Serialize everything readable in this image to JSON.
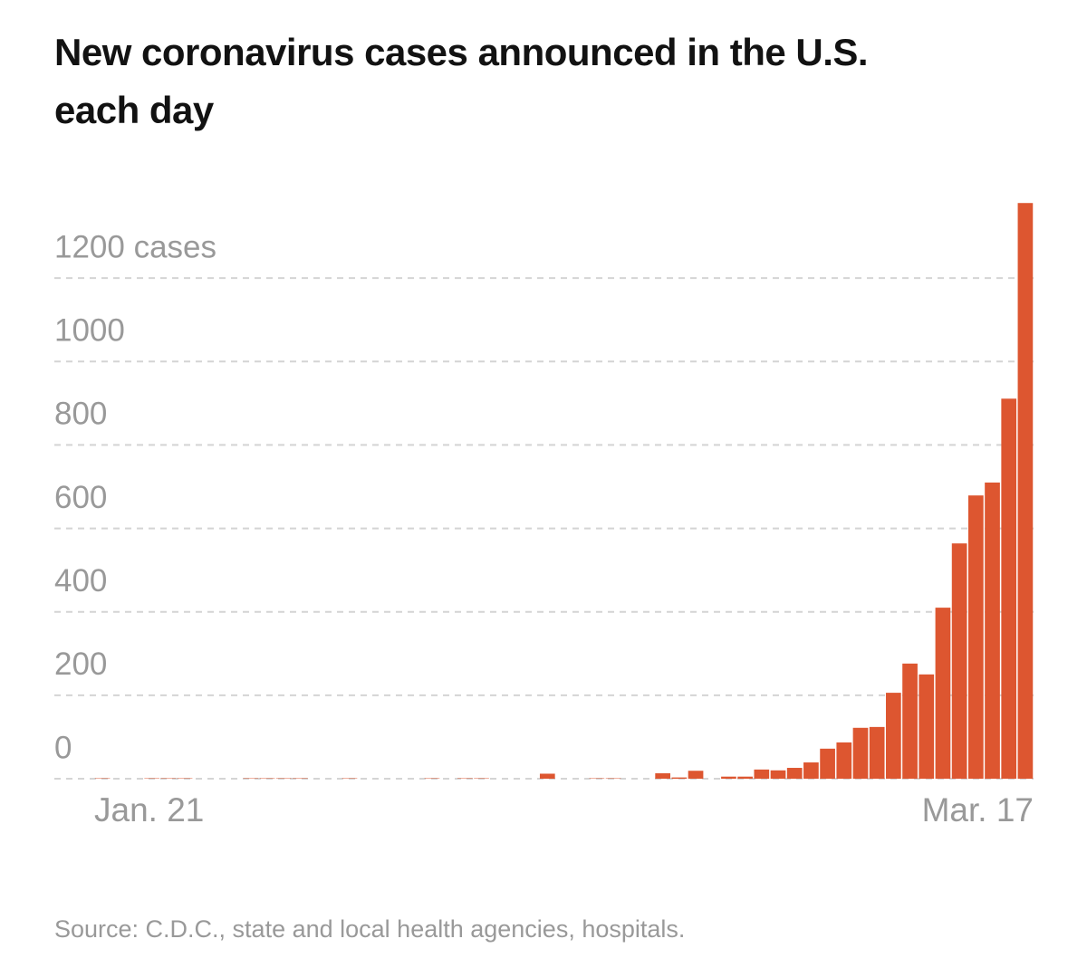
{
  "chart_data": {
    "type": "bar",
    "title": "New coronavirus cases announced in the U.S. each day",
    "source": "Source: C.D.C., state and local health agencies, hospitals.",
    "categories": [
      "Jan. 21",
      null,
      null,
      null,
      null,
      null,
      null,
      null,
      null,
      null,
      null,
      null,
      null,
      null,
      null,
      null,
      null,
      null,
      null,
      null,
      null,
      null,
      null,
      null,
      null,
      null,
      null,
      null,
      null,
      null,
      null,
      null,
      null,
      null,
      null,
      null,
      null,
      null,
      null,
      null,
      null,
      null,
      null,
      null,
      null,
      null,
      null,
      null,
      null,
      null,
      null,
      null,
      null,
      null,
      null,
      null,
      "Mar. 17"
    ],
    "values": [
      1,
      0,
      0,
      1,
      1,
      1,
      0,
      0,
      0,
      1,
      1,
      1,
      1,
      0,
      0,
      1,
      0,
      0,
      0,
      0,
      1,
      0,
      1,
      1,
      0,
      0,
      0,
      12,
      0,
      0,
      1,
      1,
      0,
      0,
      13,
      3,
      19,
      0,
      5,
      5,
      22,
      20,
      26,
      39,
      72,
      87,
      122,
      124,
      206,
      276,
      250,
      410,
      564,
      679,
      710,
      911,
      1380
    ],
    "color": "#dd5630",
    "ylim": [
      0,
      1400
    ],
    "yticks": [
      0,
      200,
      400,
      600,
      800,
      1000,
      {
        "value": 1200,
        "label": "1200 cases"
      }
    ],
    "grid": true
  }
}
